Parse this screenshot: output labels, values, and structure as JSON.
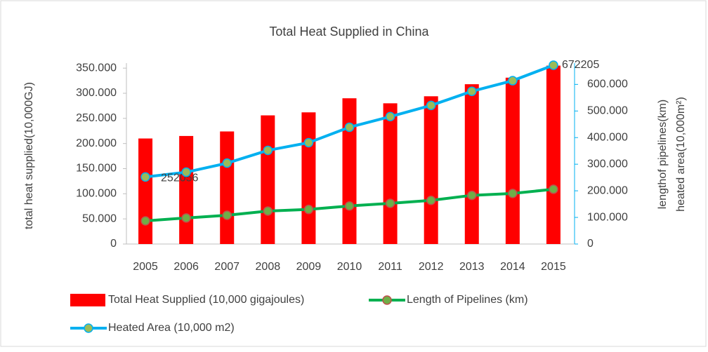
{
  "chart_data": {
    "type": "bar-line",
    "title": "Total Heat Supplied in China",
    "y_label": "total heat supplied(10,000GJ)",
    "y2_label": [
      "lengthof pipelines(km)",
      "heated area(10,000m²)"
    ],
    "categories": [
      "2005",
      "2006",
      "2007",
      "2008",
      "2009",
      "2010",
      "2011",
      "2012",
      "2013",
      "2014",
      "2015"
    ],
    "series": [
      {
        "name": "Total Heat Supplied (10,000 gigajoules)",
        "type": "bar",
        "color": "#ff0000",
        "values": [
          210000,
          215000,
          224000,
          256000,
          262000,
          290000,
          280000,
          294000,
          318000,
          331000,
          355000
        ]
      },
      {
        "name": "Length of Pipelines (km)",
        "type": "line",
        "axis": "y2",
        "color": "#00b050",
        "marker_color": "#70ad47",
        "values": [
          87000,
          98000,
          108000,
          124000,
          130000,
          143000,
          153000,
          164000,
          183000,
          190000,
          206000
        ]
      },
      {
        "name": "Heated Area (10,000 m2)",
        "type": "line",
        "axis": "y2",
        "color": "#00b0f0",
        "marker_color": "#9bbb59",
        "values": [
          252056,
          270000,
          304000,
          352000,
          381000,
          439000,
          479000,
          521000,
          574000,
          614000,
          672205
        ],
        "value_labels": [
          "252056",
          null,
          null,
          null,
          null,
          null,
          null,
          null,
          null,
          null,
          "672205"
        ]
      }
    ],
    "ylim": [
      0,
      360000
    ],
    "yticks": [
      0,
      {
        "value": 50000,
        "label": "50.000"
      },
      {
        "value": 100000,
        "label": "100.000"
      },
      {
        "value": 150000,
        "label": "150.000"
      },
      {
        "value": 200000,
        "label": "200.000"
      },
      {
        "value": 250000,
        "label": "250.000"
      },
      {
        "value": 300000,
        "label": "300.000"
      },
      {
        "value": 350000,
        "label": "350.000"
      }
    ],
    "y2lim": [
      0,
      680000
    ],
    "y2ticks": [
      0,
      {
        "value": 100000,
        "label": "100.000"
      },
      {
        "value": 200000,
        "label": "200.000"
      },
      {
        "value": 300000,
        "label": "300.000"
      },
      {
        "value": 400000,
        "label": "400.000"
      },
      {
        "value": 500000,
        "label": "500.000"
      },
      {
        "value": 600000,
        "label": "600.000"
      }
    ]
  }
}
